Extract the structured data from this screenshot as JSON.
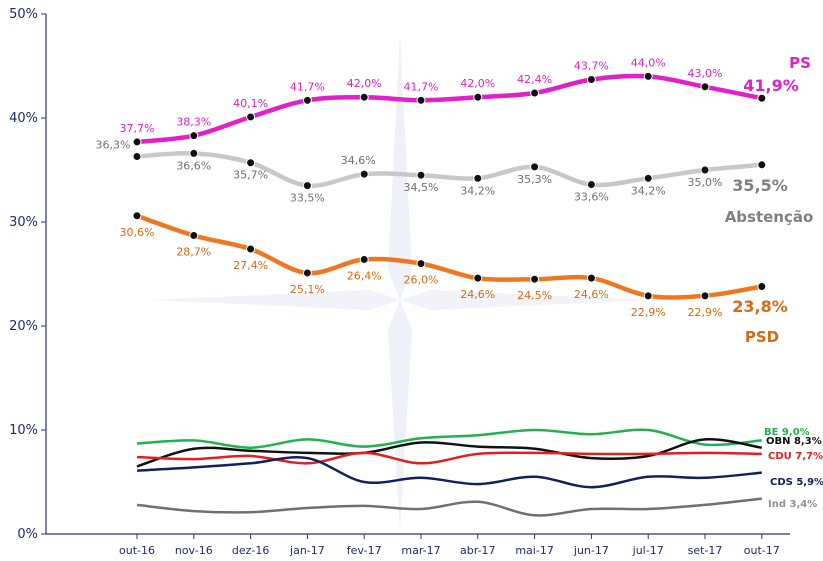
{
  "chart_data": {
    "type": "line",
    "title": "",
    "xlabel": "",
    "ylabel": "",
    "ylim": [
      0,
      50
    ],
    "yticks": [
      "0%",
      "10%",
      "20%",
      "30%",
      "40%",
      "50%"
    ],
    "categories": [
      "out-16",
      "nov-16",
      "dez-16",
      "jan-17",
      "fev-17",
      "mar-17",
      "abr-17",
      "mai-17",
      "jun-17",
      "jul-17",
      "set-17",
      "out-17"
    ],
    "grid": false,
    "legend": "inline-right",
    "main_series": [
      {
        "key": "ps",
        "name": "PS",
        "color": "#e020c8",
        "values": [
          37.7,
          38.3,
          40.1,
          41.7,
          42.0,
          41.7,
          42.0,
          42.4,
          43.7,
          44.0,
          43.0,
          41.9
        ],
        "labels": [
          "37,7%",
          "38,3%",
          "40,1%",
          "41,7%",
          "42,0%",
          "41,7%",
          "42,0%",
          "42,4%",
          "43,7%",
          "44,0%",
          "43,0%",
          "41,9%"
        ]
      },
      {
        "key": "abstencao",
        "name": "Abstenção",
        "color": "#c8c8c8",
        "label_color": "#707070",
        "end_color": "#808080",
        "values": [
          36.3,
          36.6,
          35.7,
          33.5,
          34.6,
          34.5,
          34.2,
          35.3,
          33.6,
          34.2,
          35.0,
          35.5
        ],
        "labels": [
          "36,3%",
          "36,6%",
          "35,7%",
          "33,5%",
          "34,6%",
          "34,5%",
          "34,2%",
          "35,3%",
          "33,6%",
          "34,2%",
          "35,0%",
          "35,5%"
        ]
      },
      {
        "key": "psd",
        "name": "PSD",
        "color": "#ee7722",
        "label_color": "#d86a10",
        "values": [
          30.6,
          28.7,
          27.4,
          25.1,
          26.4,
          26.0,
          24.6,
          24.5,
          24.6,
          22.9,
          22.9,
          23.8
        ],
        "labels": [
          "30,6%",
          "28,7%",
          "27,4%",
          "25,1%",
          "26,4%",
          "26,0%",
          "24,6%",
          "24,5%",
          "24,6%",
          "22,9%",
          "22,9%",
          "23,8%"
        ]
      }
    ],
    "small_series": [
      {
        "key": "be",
        "label": "BE 9,0%",
        "color": "#22b050",
        "values": [
          8.7,
          9.0,
          8.3,
          9.1,
          8.4,
          9.2,
          9.5,
          10.0,
          9.6,
          10.0,
          8.6,
          9.0
        ]
      },
      {
        "key": "obn",
        "label": "OBN 8,3%",
        "color": "#111111",
        "values": [
          6.5,
          8.2,
          8.0,
          7.8,
          7.8,
          8.8,
          8.4,
          8.2,
          7.3,
          7.5,
          9.1,
          8.3
        ]
      },
      {
        "key": "cdu",
        "label": "CDU 7,7%",
        "color": "#e02020",
        "values": [
          7.4,
          7.2,
          7.5,
          6.8,
          7.8,
          6.8,
          7.7,
          7.8,
          7.7,
          7.7,
          7.8,
          7.7
        ]
      },
      {
        "key": "cds",
        "label": "CDS 5,9%",
        "color": "#102060",
        "values": [
          6.1,
          6.4,
          6.8,
          7.3,
          5.0,
          5.4,
          4.8,
          5.5,
          4.5,
          5.5,
          5.4,
          5.9
        ]
      },
      {
        "key": "ind",
        "label": "Ind 3,4%",
        "color": "#707070",
        "label_color": "#909090",
        "values": [
          2.8,
          2.2,
          2.1,
          2.5,
          2.7,
          2.4,
          3.1,
          1.8,
          2.4,
          2.4,
          2.8,
          3.4
        ]
      }
    ]
  }
}
